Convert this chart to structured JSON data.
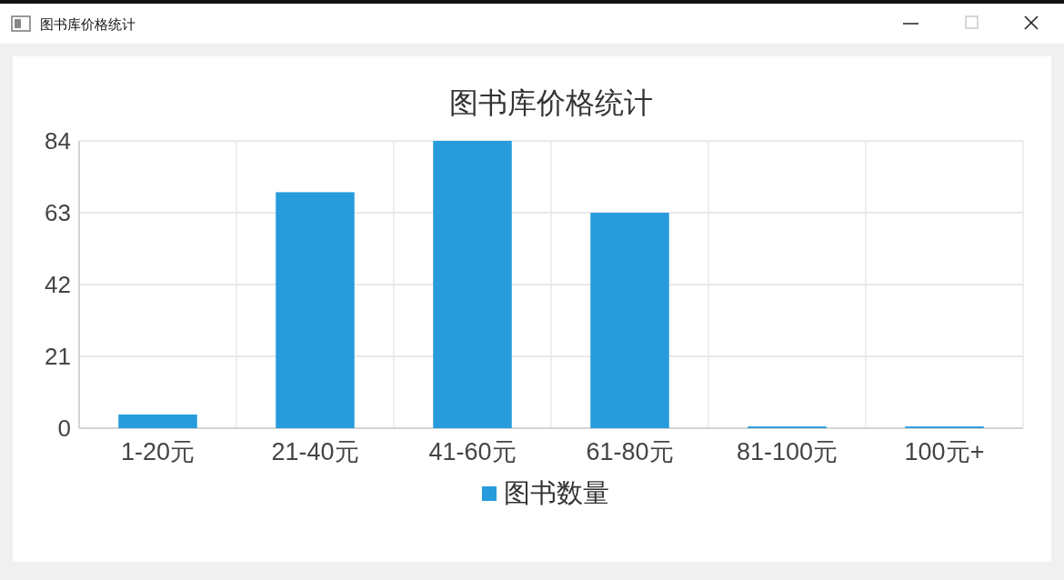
{
  "chart_data": {
    "type": "bar",
    "title": "图书库价格统计",
    "annotations": [
      "图书库价格统计"
    ],
    "categories": [
      "1-20元",
      "21-40元",
      "41-60元",
      "61-80元",
      "81-100元",
      "100元+"
    ],
    "series": [
      {
        "name": "图书数量",
        "color": "#279bdb",
        "values": [
          4,
          69,
          84,
          63,
          0.5,
          0.5
        ]
      }
    ],
    "ylim": [
      0,
      84
    ],
    "yticks": [
      0,
      21,
      42,
      63,
      84
    ],
    "grid": true,
    "legend": "bottom"
  }
}
